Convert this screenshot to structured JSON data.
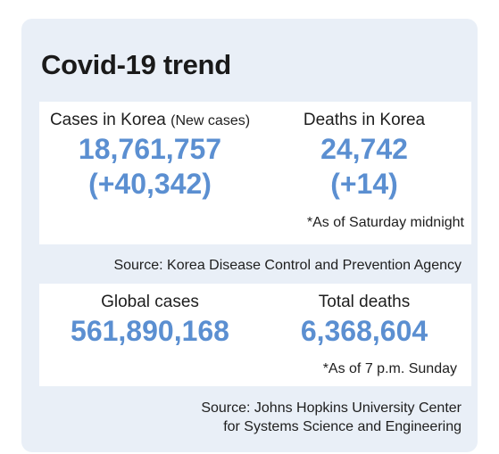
{
  "title": "Covid-19 trend",
  "korea": {
    "cases_label": "Cases in Korea",
    "cases_sublabel": "(New cases)",
    "cases_total": "18,761,757",
    "cases_new": "(+40,342)",
    "deaths_label": "Deaths in Korea",
    "deaths_total": "24,742",
    "deaths_new": "(+14)",
    "note": "*As of Saturday midnight"
  },
  "korea_source": "Source: Korea Disease Control and Prevention Agency",
  "global": {
    "cases_label": "Global cases",
    "cases_total": "561,890,168",
    "deaths_label": "Total deaths",
    "deaths_total": "6,368,604",
    "note": "*As of 7 p.m. Sunday"
  },
  "global_source": {
    "line1": "Source: Johns Hopkins University Center",
    "line2": "for Systems Science and Engineering"
  },
  "colors": {
    "background": "#e9eff7",
    "panel": "#ffffff",
    "accent": "#5b8fd1",
    "text": "#1e1e1e"
  }
}
